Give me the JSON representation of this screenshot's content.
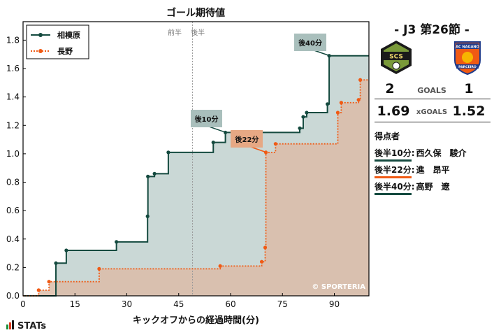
{
  "chart_data": {
    "type": "line",
    "title": "ゴール期待値",
    "xlabel": "キックオフからの経過時間(分)",
    "ylabel": "",
    "xlim": [
      0,
      100
    ],
    "ylim": [
      0,
      1.93
    ],
    "xticks": [
      0,
      15,
      30,
      45,
      60,
      75,
      90
    ],
    "yticks": [
      0.0,
      0.2,
      0.4,
      0.6,
      0.8,
      1.0,
      1.2,
      1.4,
      1.6,
      1.8
    ],
    "grid": false,
    "legend": "top-left",
    "series": [
      {
        "name": "相模原",
        "color": "#144a3f",
        "fill": "#c4d4d2",
        "step_points": [
          [
            0,
            0
          ],
          [
            9.5,
            0.23
          ],
          [
            12.5,
            0.32
          ],
          [
            27,
            0.38
          ],
          [
            36,
            0.56
          ],
          [
            36.1,
            0.84
          ],
          [
            38,
            0.86
          ],
          [
            42,
            1.01
          ],
          [
            55,
            1.08
          ],
          [
            58.5,
            1.15
          ],
          [
            80,
            1.18
          ],
          [
            81,
            1.26
          ],
          [
            82,
            1.29
          ],
          [
            88,
            1.35
          ],
          [
            88.5,
            1.69
          ],
          [
            100,
            1.69
          ]
        ]
      },
      {
        "name": "長野",
        "color": "#f05a14",
        "fill": "#dcbca8",
        "step_points": [
          [
            0,
            0
          ],
          [
            4.5,
            0.04
          ],
          [
            7.5,
            0.1
          ],
          [
            22,
            0.19
          ],
          [
            57,
            0.21
          ],
          [
            69,
            0.24
          ],
          [
            70,
            0.34
          ],
          [
            70.2,
            1.01
          ],
          [
            73,
            1.07
          ],
          [
            91,
            1.29
          ],
          [
            92,
            1.36
          ],
          [
            97,
            1.38
          ],
          [
            97.5,
            1.52
          ],
          [
            100,
            1.52
          ]
        ]
      }
    ]
  },
  "annotations": {
    "half_labels": [
      "前半",
      "後半"
    ],
    "halftime_minute": 49,
    "callouts": [
      {
        "text": "後10分",
        "team": "home",
        "x": 58.5,
        "y": 1.15
      },
      {
        "text": "後22分",
        "team": "away",
        "x": 70.2,
        "y": 1.01
      },
      {
        "text": "後40分",
        "team": "home",
        "x": 88.5,
        "y": 1.69
      }
    ],
    "copyright": "© SPORTERIA"
  },
  "match": {
    "title": "- J3 第26節 -",
    "home_crest_text": "SCS",
    "away_crest_text_top": "AC NAGANO",
    "away_crest_text_bottom": "PARCEIRO",
    "goals": {
      "label": "GOALS",
      "home": "2",
      "away": "1"
    },
    "xgoals": {
      "label": "xGOALS",
      "home": "1.69",
      "away": "1.52"
    }
  },
  "scorers": {
    "title": "得点者",
    "items": [
      {
        "time": "後半10分",
        "name": "西久保　駿介",
        "team": "home"
      },
      {
        "time": "後半22分",
        "name": "進　昂平",
        "team": "away"
      },
      {
        "time": "後半40分",
        "name": "高野　遼",
        "team": "home"
      }
    ]
  },
  "colors": {
    "home": "#144a3f",
    "away": "#f05a14",
    "home_callout_bg": "#a9bfbc",
    "away_callout_bg": "#e6a884"
  },
  "branding": {
    "logo_text": "STATs"
  }
}
